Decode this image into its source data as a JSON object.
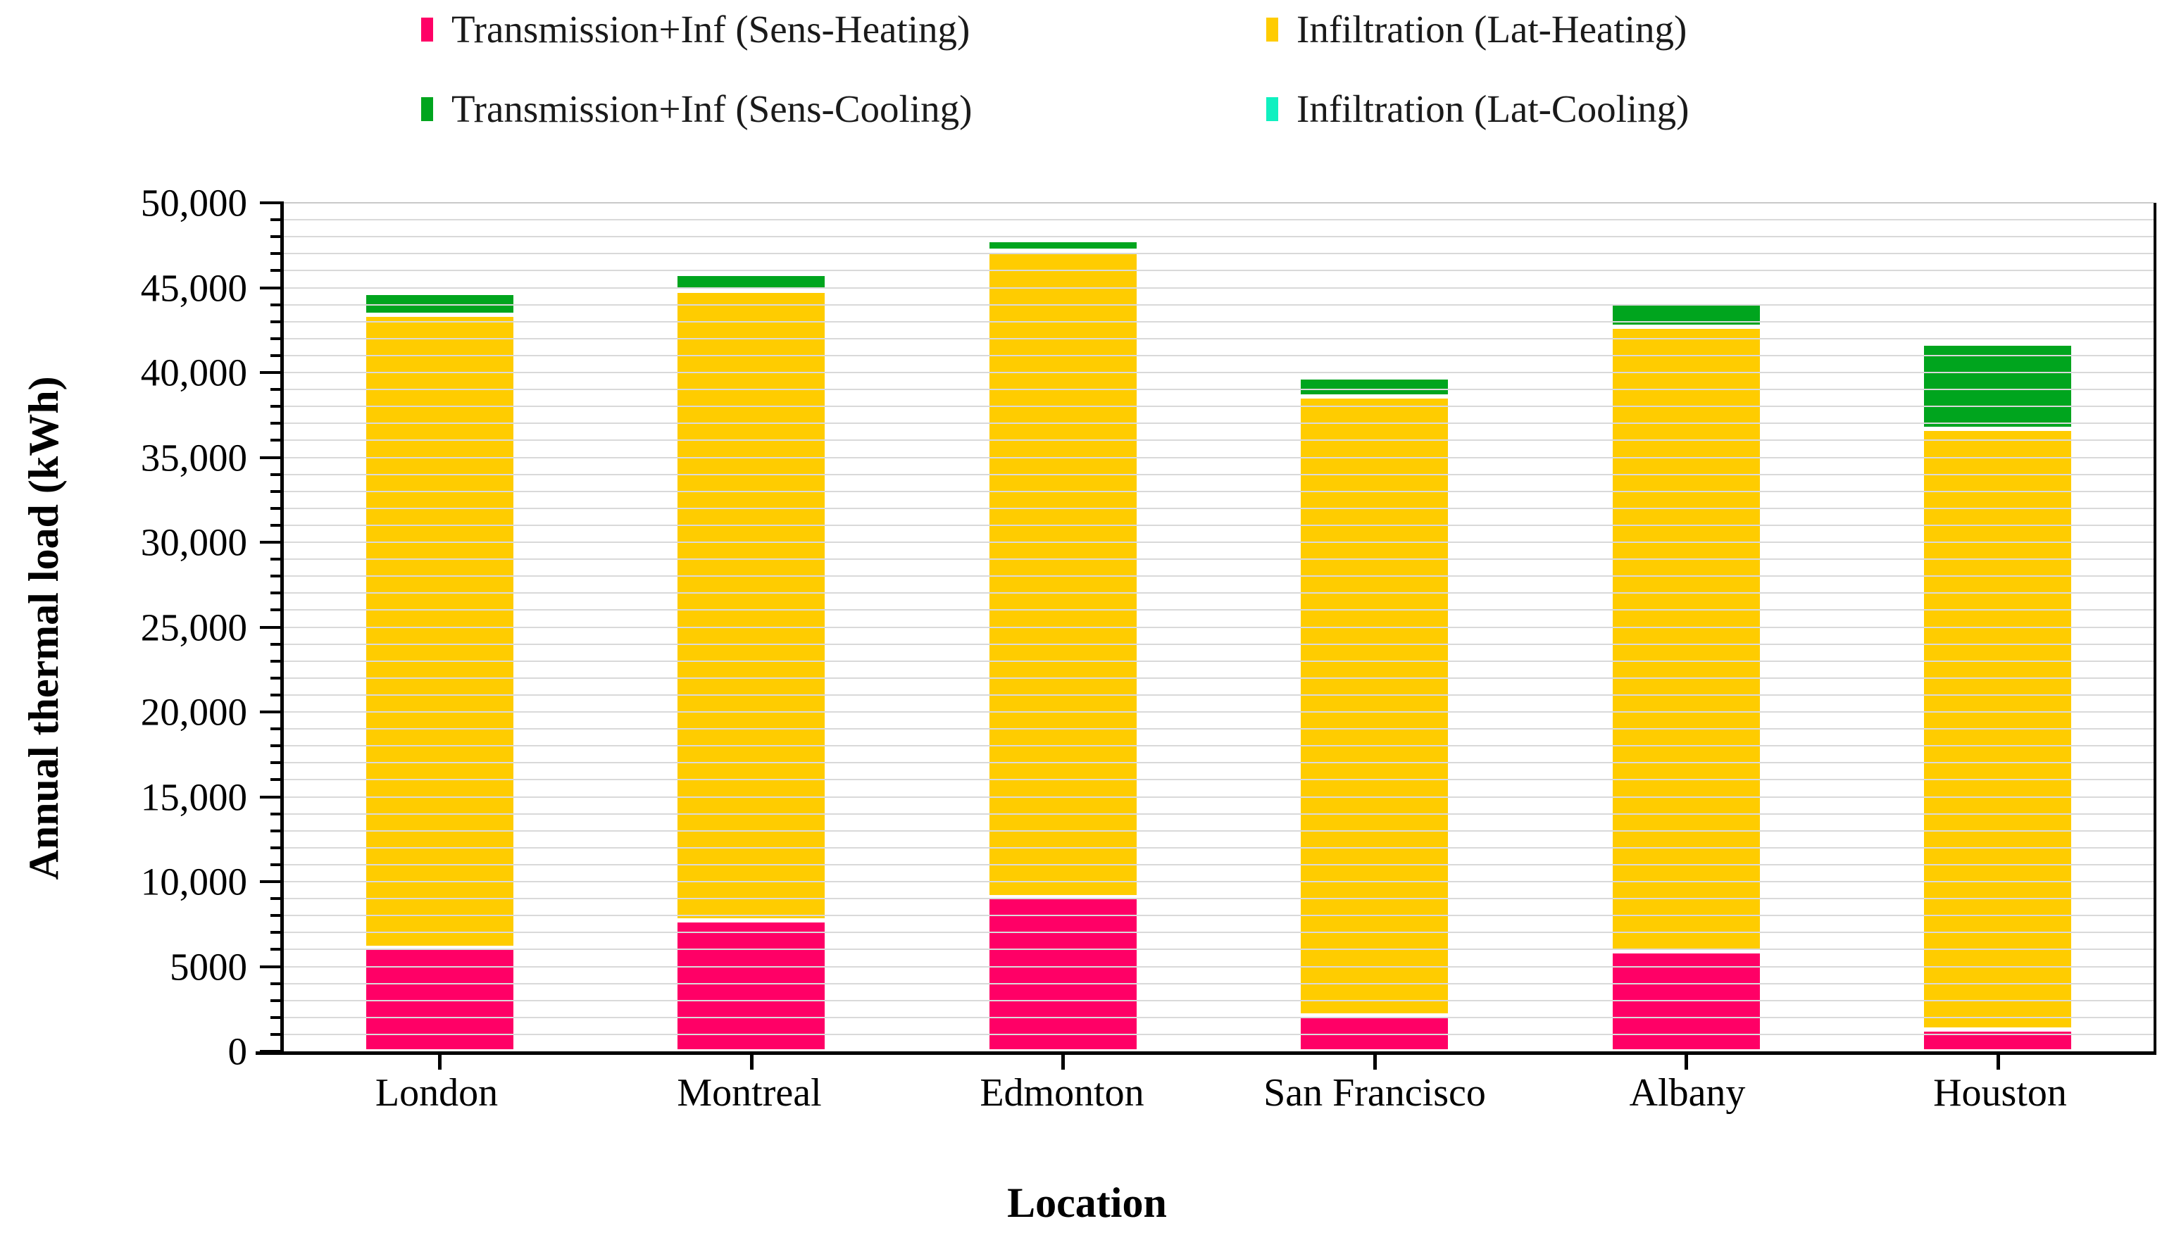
{
  "legend": {
    "items": [
      {
        "label": "Transmission+Inf (Sens-Heating)",
        "color": "#FF0066"
      },
      {
        "label": "Infiltration (Lat-Heating)",
        "color": "#FFCC00"
      },
      {
        "label": "Transmission+Inf (Sens-Cooling)",
        "color": "#00A51E"
      },
      {
        "label": "Infiltration (Lat-Cooling)",
        "color": "#10F0C0"
      }
    ]
  },
  "chart_data": {
    "type": "bar",
    "stacked": true,
    "title": "",
    "xlabel": "Location",
    "ylabel": "Annual thermal load (kWh)",
    "categories": [
      "London",
      "Montreal",
      "Edmonton",
      "San Francisco",
      "Albany",
      "Houston"
    ],
    "series": [
      {
        "name": "Transmission+Inf (Sens-Heating)",
        "color": "#FF0066",
        "values": [
          6100,
          7700,
          9100,
          2100,
          5900,
          1300
        ]
      },
      {
        "name": "Infiltration (Lat-Heating)",
        "color": "#FFCC00",
        "values": [
          37300,
          37100,
          38100,
          36500,
          36800,
          35400
        ]
      },
      {
        "name": "Transmission+Inf (Sens-Cooling)",
        "color": "#00A51E",
        "values": [
          1300,
          1000,
          600,
          1100,
          1400,
          5000
        ]
      },
      {
        "name": "Infiltration (Lat-Cooling)",
        "color": "#10F0C0",
        "values": [
          0,
          0,
          0,
          0,
          0,
          0
        ]
      }
    ],
    "stack_totals": [
      44700,
      45800,
      47800,
      39700,
      44100,
      41700
    ],
    "ylim": [
      0,
      50000
    ],
    "ytick_major": 5000,
    "ytick_minor": 1000,
    "ytick_labels": [
      "0",
      "5000",
      "10,000",
      "15,000",
      "20,000",
      "25,000",
      "30,000",
      "35,000",
      "40,000",
      "45,000",
      "50,000"
    ],
    "grid": "horizontal, every 1000 kWh, light gray",
    "legend_position": "top",
    "axis_color": "#000000",
    "gridline_color": "#D9D9D9"
  }
}
